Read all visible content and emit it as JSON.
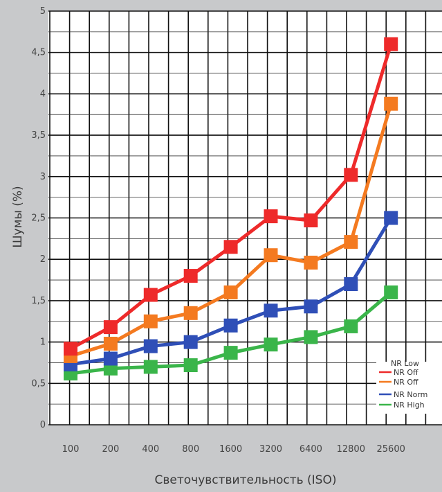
{
  "chart_data": {
    "type": "line",
    "xlabel": "Светочувствительность (ISO)",
    "ylabel": "Шумы (%)",
    "categories": [
      "100",
      "200",
      "400",
      "800",
      "1600",
      "3200",
      "6400",
      "12800",
      "25600"
    ],
    "y_ticks": [
      "0",
      "0,5",
      "1",
      "1,5",
      "2",
      "2,5",
      "3",
      "3,5",
      "4",
      "4,5",
      "5"
    ],
    "ylim": [
      0,
      5
    ],
    "grid": true,
    "legend_position": "bottom-right",
    "series": [
      {
        "name": "NR Low",
        "color": "#ee2a2a",
        "values": [
          0.92,
          1.18,
          1.57,
          1.8,
          2.15,
          2.52,
          2.47,
          3.02,
          4.6
        ]
      },
      {
        "name": "NR Off",
        "color": "#f47a20",
        "values": [
          0.83,
          0.98,
          1.25,
          1.35,
          1.6,
          2.05,
          1.96,
          2.21,
          3.88
        ]
      },
      {
        "name": "NR Norm",
        "color": "#2f4fb7",
        "values": [
          0.73,
          0.8,
          0.95,
          1.0,
          1.2,
          1.38,
          1.43,
          1.7,
          2.5
        ]
      },
      {
        "name": "NR High",
        "color": "#3ab54a",
        "values": [
          0.62,
          0.68,
          0.7,
          0.72,
          0.87,
          0.97,
          1.06,
          1.19,
          1.6
        ]
      }
    ],
    "legend_entries": [
      "NR Low",
      "NR Off",
      "NR Norm",
      "NR High"
    ]
  }
}
